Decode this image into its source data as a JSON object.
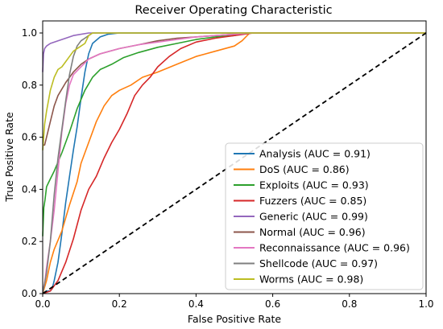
{
  "chart_data": {
    "type": "line",
    "title": "Receiver Operating Characteristic",
    "xlabel": "False Positive Rate",
    "ylabel": "True Positive Rate",
    "xlim": [
      0,
      1
    ],
    "ylim": [
      0,
      1
    ],
    "xticks": [
      "0.0",
      "0.2",
      "0.4",
      "0.6",
      "0.8",
      "1.0"
    ],
    "yticks": [
      "0.0",
      "0.2",
      "0.4",
      "0.6",
      "0.8",
      "1.0"
    ],
    "grid": false,
    "legend_position": "lower-right",
    "diagonal": {
      "color": "#000000",
      "style": "dashed"
    },
    "series": [
      {
        "name": "Analysis (AUC = 0.91)",
        "color": "#1f77b4",
        "points": [
          [
            0,
            0
          ],
          [
            0.01,
            0.01
          ],
          [
            0.02,
            0.01
          ],
          [
            0.025,
            0.02
          ],
          [
            0.03,
            0.05
          ],
          [
            0.04,
            0.12
          ],
          [
            0.05,
            0.23
          ],
          [
            0.06,
            0.35
          ],
          [
            0.07,
            0.45
          ],
          [
            0.08,
            0.55
          ],
          [
            0.09,
            0.64
          ],
          [
            0.1,
            0.75
          ],
          [
            0.11,
            0.85
          ],
          [
            0.12,
            0.92
          ],
          [
            0.13,
            0.96
          ],
          [
            0.15,
            0.985
          ],
          [
            0.17,
            0.995
          ],
          [
            0.2,
            1.0
          ],
          [
            1.0,
            1.0
          ]
        ]
      },
      {
        "name": "DoS (AUC = 0.86)",
        "color": "#ff7f0e",
        "points": [
          [
            0,
            0
          ],
          [
            0.01,
            0.05
          ],
          [
            0.02,
            0.12
          ],
          [
            0.03,
            0.17
          ],
          [
            0.05,
            0.24
          ],
          [
            0.07,
            0.34
          ],
          [
            0.09,
            0.43
          ],
          [
            0.1,
            0.5
          ],
          [
            0.12,
            0.58
          ],
          [
            0.14,
            0.66
          ],
          [
            0.16,
            0.72
          ],
          [
            0.18,
            0.76
          ],
          [
            0.2,
            0.78
          ],
          [
            0.23,
            0.8
          ],
          [
            0.26,
            0.83
          ],
          [
            0.3,
            0.85
          ],
          [
            0.35,
            0.88
          ],
          [
            0.4,
            0.91
          ],
          [
            0.45,
            0.93
          ],
          [
            0.5,
            0.95
          ],
          [
            0.52,
            0.97
          ],
          [
            0.54,
            1.0
          ],
          [
            1.0,
            1.0
          ]
        ]
      },
      {
        "name": "Exploits (AUC = 0.93)",
        "color": "#2ca02c",
        "points": [
          [
            0,
            0.22
          ],
          [
            0.003,
            0.33
          ],
          [
            0.006,
            0.36
          ],
          [
            0.01,
            0.41
          ],
          [
            0.02,
            0.44
          ],
          [
            0.03,
            0.47
          ],
          [
            0.05,
            0.54
          ],
          [
            0.07,
            0.62
          ],
          [
            0.09,
            0.71
          ],
          [
            0.11,
            0.78
          ],
          [
            0.13,
            0.83
          ],
          [
            0.15,
            0.86
          ],
          [
            0.18,
            0.88
          ],
          [
            0.21,
            0.905
          ],
          [
            0.25,
            0.925
          ],
          [
            0.3,
            0.945
          ],
          [
            0.35,
            0.96
          ],
          [
            0.4,
            0.975
          ],
          [
            0.45,
            0.985
          ],
          [
            0.5,
            0.99
          ],
          [
            0.53,
            1.0
          ],
          [
            1.0,
            1.0
          ]
        ]
      },
      {
        "name": "Fuzzers (AUC = 0.85)",
        "color": "#d62728",
        "points": [
          [
            0,
            0
          ],
          [
            0.02,
            0.01
          ],
          [
            0.04,
            0.05
          ],
          [
            0.06,
            0.12
          ],
          [
            0.08,
            0.21
          ],
          [
            0.1,
            0.32
          ],
          [
            0.12,
            0.4
          ],
          [
            0.14,
            0.45
          ],
          [
            0.16,
            0.52
          ],
          [
            0.18,
            0.58
          ],
          [
            0.2,
            0.63
          ],
          [
            0.22,
            0.69
          ],
          [
            0.24,
            0.76
          ],
          [
            0.26,
            0.8
          ],
          [
            0.28,
            0.83
          ],
          [
            0.3,
            0.87
          ],
          [
            0.33,
            0.91
          ],
          [
            0.36,
            0.94
          ],
          [
            0.4,
            0.965
          ],
          [
            0.45,
            0.98
          ],
          [
            0.5,
            0.99
          ],
          [
            0.55,
            1.0
          ],
          [
            1.0,
            1.0
          ]
        ]
      },
      {
        "name": "Generic (AUC = 0.99)",
        "color": "#9467bd",
        "points": [
          [
            0,
            0.85
          ],
          [
            0.002,
            0.92
          ],
          [
            0.005,
            0.94
          ],
          [
            0.01,
            0.95
          ],
          [
            0.02,
            0.96
          ],
          [
            0.04,
            0.97
          ],
          [
            0.06,
            0.98
          ],
          [
            0.08,
            0.99
          ],
          [
            0.12,
            1.0
          ],
          [
            1.0,
            1.0
          ]
        ]
      },
      {
        "name": "Normal (AUC = 0.96)",
        "color": "#8c564b",
        "points": [
          [
            0,
            0.57
          ],
          [
            0.005,
            0.57
          ],
          [
            0.01,
            0.6
          ],
          [
            0.02,
            0.66
          ],
          [
            0.03,
            0.72
          ],
          [
            0.04,
            0.76
          ],
          [
            0.06,
            0.81
          ],
          [
            0.08,
            0.85
          ],
          [
            0.1,
            0.88
          ],
          [
            0.12,
            0.9
          ],
          [
            0.15,
            0.92
          ],
          [
            0.2,
            0.94
          ],
          [
            0.25,
            0.955
          ],
          [
            0.3,
            0.97
          ],
          [
            0.35,
            0.98
          ],
          [
            0.4,
            0.985
          ],
          [
            0.45,
            0.99
          ],
          [
            0.5,
            0.995
          ],
          [
            0.55,
            1.0
          ],
          [
            1.0,
            1.0
          ]
        ]
      },
      {
        "name": "Reconnaissance (AUC = 0.96)",
        "color": "#e377c2",
        "points": [
          [
            0,
            0.01
          ],
          [
            0.005,
            0.04
          ],
          [
            0.01,
            0.1
          ],
          [
            0.02,
            0.2
          ],
          [
            0.03,
            0.32
          ],
          [
            0.04,
            0.47
          ],
          [
            0.05,
            0.62
          ],
          [
            0.06,
            0.73
          ],
          [
            0.07,
            0.8
          ],
          [
            0.08,
            0.84
          ],
          [
            0.1,
            0.87
          ],
          [
            0.12,
            0.9
          ],
          [
            0.15,
            0.92
          ],
          [
            0.2,
            0.94
          ],
          [
            0.25,
            0.955
          ],
          [
            0.3,
            0.965
          ],
          [
            0.35,
            0.975
          ],
          [
            0.4,
            0.985
          ],
          [
            0.45,
            0.99
          ],
          [
            0.5,
            0.995
          ],
          [
            0.55,
            1.0
          ],
          [
            1.0,
            1.0
          ]
        ]
      },
      {
        "name": "Shellcode (AUC = 0.97)",
        "color": "#7f7f7f",
        "points": [
          [
            0,
            0.0
          ],
          [
            0.01,
            0.08
          ],
          [
            0.02,
            0.2
          ],
          [
            0.03,
            0.38
          ],
          [
            0.04,
            0.52
          ],
          [
            0.05,
            0.63
          ],
          [
            0.06,
            0.74
          ],
          [
            0.07,
            0.84
          ],
          [
            0.08,
            0.91
          ],
          [
            0.09,
            0.95
          ],
          [
            0.1,
            0.97
          ],
          [
            0.11,
            0.98
          ],
          [
            0.12,
            0.99
          ],
          [
            0.13,
            1.0
          ],
          [
            1.0,
            1.0
          ]
        ]
      },
      {
        "name": "Worms (AUC = 0.98)",
        "color": "#bcbd22",
        "points": [
          [
            0,
            0.55
          ],
          [
            0.005,
            0.65
          ],
          [
            0.01,
            0.7
          ],
          [
            0.02,
            0.78
          ],
          [
            0.03,
            0.83
          ],
          [
            0.04,
            0.86
          ],
          [
            0.05,
            0.87
          ],
          [
            0.06,
            0.89
          ],
          [
            0.07,
            0.91
          ],
          [
            0.08,
            0.93
          ],
          [
            0.09,
            0.94
          ],
          [
            0.1,
            0.95
          ],
          [
            0.11,
            0.96
          ],
          [
            0.12,
            0.99
          ],
          [
            0.13,
            1.0
          ],
          [
            1.0,
            1.0
          ]
        ]
      }
    ]
  }
}
